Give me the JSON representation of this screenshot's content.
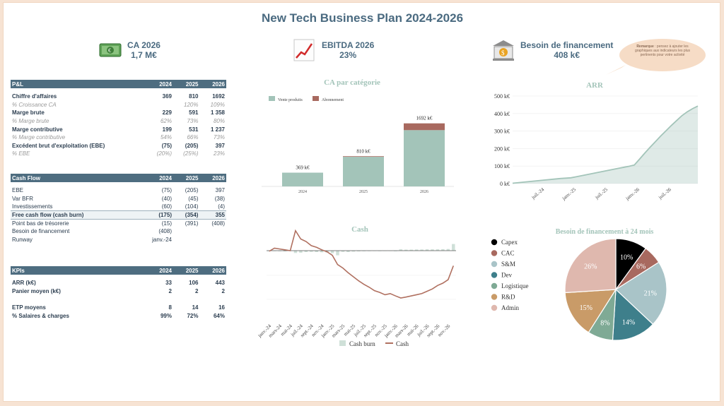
{
  "title": "New Tech Business Plan 2024-2026",
  "kpis": [
    {
      "label": "CA 2026",
      "value": "1,7 M€",
      "icon": "money-icon"
    },
    {
      "label": "EBITDA 2026",
      "value": "23%",
      "icon": "chart-up-icon"
    },
    {
      "label": "Besoin de financement",
      "value": "408 k€",
      "icon": "bank-icon"
    }
  ],
  "callout": {
    "bold": "Remarque",
    "text": " : pensez à ajouter les graphiques aux indicateurs les plus pertinents pour votre activité"
  },
  "pl": {
    "header": [
      "P&L",
      "2024",
      "2025",
      "2026"
    ],
    "rows": [
      {
        "label": "Chiffre d'affaires",
        "v": [
          "369",
          "810",
          "1692"
        ],
        "style": "b"
      },
      {
        "label": "% Croissance CA",
        "v": [
          "",
          "120%",
          "109%"
        ],
        "style": "i"
      },
      {
        "label": "Marge brute",
        "v": [
          "229",
          "591",
          "1 358"
        ],
        "style": "b"
      },
      {
        "label": "% Marge brute",
        "v": [
          "62%",
          "73%",
          "80%"
        ],
        "style": "i"
      },
      {
        "label": "Marge contributive",
        "v": [
          "199",
          "531",
          "1 237"
        ],
        "style": "b"
      },
      {
        "label": "% Marge contributive",
        "v": [
          "54%",
          "66%",
          "73%"
        ],
        "style": "i"
      },
      {
        "label": "Excédent brut d'exploitation (EBE)",
        "v": [
          "(75)",
          "(205)",
          "397"
        ],
        "style": "b"
      },
      {
        "label": "% EBE",
        "v": [
          "(20%)",
          "(25%)",
          "23%"
        ],
        "style": "i"
      }
    ]
  },
  "cf": {
    "header": [
      "Cash Flow",
      "2024",
      "2025",
      "2026"
    ],
    "rows": [
      {
        "label": "EBE",
        "v": [
          "(75)",
          "(205)",
          "397"
        ],
        "style": ""
      },
      {
        "label": "Var BFR",
        "v": [
          "(40)",
          "(45)",
          "(38)"
        ],
        "style": ""
      },
      {
        "label": "Investissements",
        "v": [
          "(60)",
          "(104)",
          "(4)"
        ],
        "style": ""
      },
      {
        "label": "Free cash flow (cash burn)",
        "v": [
          "(175)",
          "(354)",
          "355"
        ],
        "style": "fcf"
      },
      {
        "label": "Point bas de trésorerie",
        "v": [
          "(15)",
          "(391)",
          "(408)"
        ],
        "style": ""
      },
      {
        "label": "Besoin de financement",
        "v": [
          "(408)",
          "",
          ""
        ],
        "style": ""
      },
      {
        "label": "Runway",
        "v": [
          "janv.-24",
          "",
          ""
        ],
        "style": ""
      }
    ]
  },
  "kp": {
    "header": [
      "KPIs",
      "2024",
      "2025",
      "2026"
    ],
    "rows": [
      {
        "label": "ARR (k€)",
        "v": [
          "33",
          "106",
          "443"
        ],
        "style": "b"
      },
      {
        "label": "Panier moyen (k€)",
        "v": [
          "2",
          "2",
          "2"
        ],
        "style": "b"
      },
      {
        "label": "",
        "v": [
          "",
          "",
          ""
        ],
        "style": ""
      },
      {
        "label": "ETP moyens",
        "v": [
          "8",
          "14",
          "16"
        ],
        "style": "b"
      },
      {
        "label": "% Salaires & charges",
        "v": [
          "99%",
          "72%",
          "64%"
        ],
        "style": "b"
      }
    ]
  },
  "chart_data": [
    {
      "type": "bar",
      "title": "CA par catégorie",
      "categories": [
        "2024",
        "2025",
        "2026"
      ],
      "series": [
        {
          "name": "Vente produits",
          "values": [
            369,
            795,
            1510
          ],
          "color": "#a3c4b9"
        },
        {
          "name": "Abonnement",
          "values": [
            0,
            15,
            182
          ],
          "color": "#a8695f"
        }
      ],
      "data_labels": [
        "369 k€",
        "810 k€",
        "1692 k€"
      ]
    },
    {
      "type": "area",
      "title": "ARR",
      "x": [
        "janv.-24",
        "févr.-24",
        "mars-24",
        "avr.-24",
        "mai-24",
        "juin-24",
        "juil.-24",
        "août-24",
        "sept.-24",
        "oct.-24",
        "nov.-24",
        "déc.-24",
        "janv.-25",
        "févr.-25",
        "mars-25",
        "avr.-25",
        "mai-25",
        "juin-25",
        "juil.-25",
        "août-25",
        "sept.-25",
        "oct.-25",
        "nov.-25",
        "déc.-25",
        "janv.-26",
        "févr.-26",
        "mars-26",
        "avr.-26",
        "mai-26",
        "juin-26",
        "juil.-26",
        "août-26",
        "sept.-26",
        "oct.-26",
        "nov.-26",
        "déc.-26"
      ],
      "values": [
        2,
        5,
        8,
        11,
        14,
        17,
        20,
        23,
        26,
        29,
        31,
        33,
        39,
        45,
        51,
        57,
        63,
        69,
        75,
        81,
        87,
        93,
        99,
        106,
        140,
        175,
        208,
        240,
        272,
        302,
        332,
        360,
        388,
        410,
        428,
        443
      ],
      "tick_labels": [
        "juil.-24",
        "janv.-25",
        "juil.-25",
        "janv.-26",
        "juil.-26"
      ],
      "y_ticks": [
        "0 k€",
        "100 k€",
        "200 k€",
        "300 k€",
        "400 k€",
        "500 k€"
      ],
      "ylim": [
        0,
        500
      ],
      "color": "#a3c4b9"
    },
    {
      "type": "line",
      "title": "Cash",
      "x": [
        "janv.-24",
        "févr.-24",
        "mars-24",
        "avr.-24",
        "mai-24",
        "juin-24",
        "juil.-24",
        "août-24",
        "sept.-24",
        "oct.-24",
        "nov.-24",
        "déc.-24",
        "janv.-25",
        "févr.-25",
        "mars-25",
        "avr.-25",
        "mai-25",
        "juin-25",
        "juil.-25",
        "août-25",
        "sept.-25",
        "oct.-25",
        "nov.-25",
        "déc.-25",
        "janv.-26",
        "févr.-26",
        "mars-26",
        "avr.-26",
        "mai-26",
        "juin-26",
        "juil.-26",
        "août-26",
        "sept.-26",
        "oct.-26",
        "nov.-26",
        "déc.-26"
      ],
      "tick_labels": [
        "janv.-24",
        "mars-24",
        "mai-24",
        "juil.-24",
        "sept.-24",
        "nov.-24",
        "janv.-25",
        "mars-25",
        "mai-25",
        "juil.-25",
        "sept.-25",
        "nov.-25",
        "janv.-26",
        "mars-26",
        "mai-26",
        "juil.-26",
        "sept.-26",
        "nov.-26"
      ],
      "series": [
        {
          "name": "Cash burn",
          "type": "bar",
          "values": [
            -5,
            -4,
            -5,
            -6,
            -3,
            -20,
            -18,
            -12,
            -10,
            -12,
            -14,
            -16,
            -22,
            -40,
            -10,
            -12,
            -8,
            -6,
            -5,
            -4,
            -3,
            -4,
            -3,
            -2,
            -5,
            8,
            6,
            6,
            7,
            7,
            8,
            8,
            8,
            9,
            10,
            40
          ],
          "color": "#cfe0d8"
        },
        {
          "name": "Cash",
          "type": "line",
          "values": [
            -5,
            15,
            10,
            5,
            0,
            120,
            70,
            55,
            30,
            20,
            5,
            -10,
            -40,
            -120,
            -150,
            -190,
            -225,
            -260,
            -290,
            -315,
            -345,
            -360,
            -380,
            -370,
            -390,
            -408,
            -400,
            -390,
            -380,
            -370,
            -350,
            -330,
            -300,
            -280,
            -250,
            -130
          ],
          "color": "#b07060"
        }
      ]
    },
    {
      "type": "pie",
      "title": "Besoin de financement à 24 mois",
      "labels": [
        "Capex",
        "CAC",
        "S&M",
        "Dev",
        "Logistique",
        "R&D",
        "Admin"
      ],
      "values": [
        10,
        6,
        21,
        14,
        8,
        15,
        26
      ],
      "colors": [
        "#000000",
        "#a8695f",
        "#a9c4c8",
        "#3e7f8b",
        "#7faa95",
        "#c99b68",
        "#dfb8ae"
      ]
    }
  ]
}
